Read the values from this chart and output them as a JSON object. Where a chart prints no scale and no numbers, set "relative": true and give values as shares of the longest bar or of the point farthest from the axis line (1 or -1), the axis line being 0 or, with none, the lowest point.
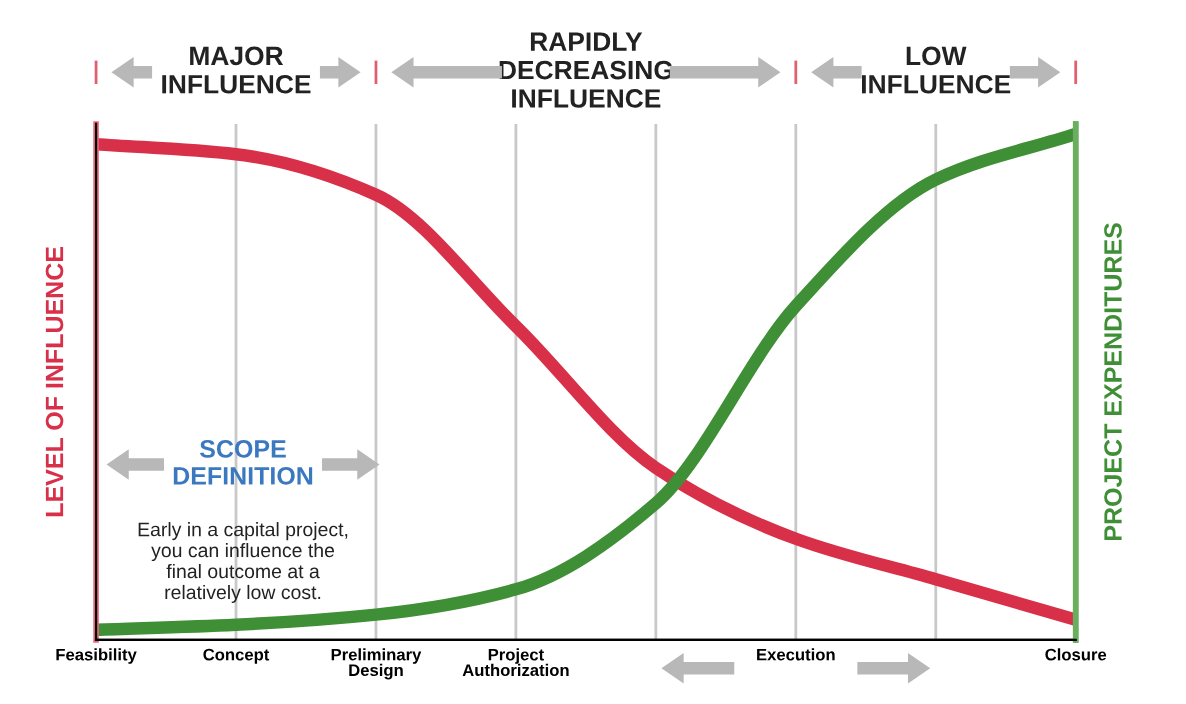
{
  "chart_data": {
    "type": "line",
    "relative": true,
    "categories": [
      "Feasibility",
      "Concept",
      "Preliminary\nDesign",
      "Project\nAuthorization",
      null,
      "Execution",
      null,
      "Closure"
    ],
    "series": [
      {
        "color": "#d9304a",
        "values": [
          0.98,
          0.96,
          0.88,
          0.62,
          0.34,
          0.2,
          0.12,
          0.04
        ]
      },
      {
        "color": "#3f8f36",
        "values": [
          0.02,
          0.03,
          0.05,
          0.1,
          0.27,
          0.66,
          0.91,
          1.0
        ]
      }
    ],
    "ylabel": "LEVEL OF INFLUENCE",
    "y2label": "PROJECT EXPENDITURES",
    "annotations": [
      "MAJOR\nINFLUENCE",
      "RAPIDLY\nDECREASING\nINFLUENCE",
      "LOW\nINFLUENCE",
      "SCOPE\nDEFINITION",
      "Early in a capital project,\nyou can influence the\nfinal outcome at a\nrelatively low cost."
    ],
    "grid": "x",
    "marker": "none",
    "line_style": "solid"
  }
}
